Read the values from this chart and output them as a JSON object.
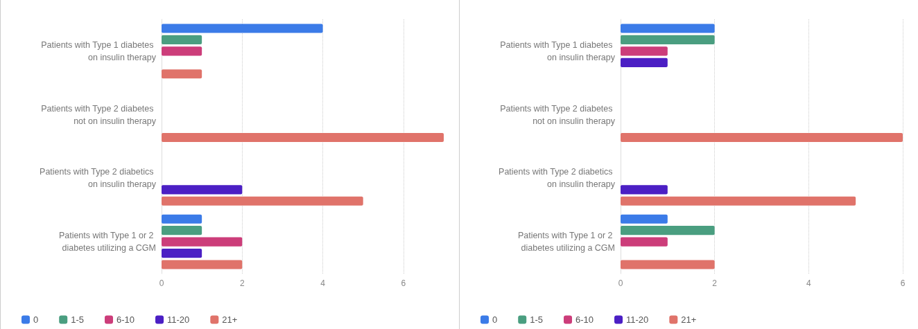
{
  "chart_data": [
    {
      "type": "bar",
      "orientation": "horizontal",
      "categories": [
        "Patients with Type 1 diabetes on insulin therapy",
        "Patients with Type 2 diabetes not on insulin therapy",
        "Patients with Type 2 diabetics on insulin therapy",
        "Patients with Type 1 or 2 diabetes utilizing a CGM"
      ],
      "series": [
        {
          "name": "0",
          "color": "#3b7be8",
          "values": [
            4,
            0,
            0,
            1
          ]
        },
        {
          "name": "1-5",
          "color": "#4a9e80",
          "values": [
            1,
            0,
            0,
            1
          ]
        },
        {
          "name": "6-10",
          "color": "#cc3d7a",
          "values": [
            1,
            0,
            0,
            2
          ]
        },
        {
          "name": "11-20",
          "color": "#4b1fc4",
          "values": [
            0,
            0,
            2,
            1
          ]
        },
        {
          "name": "21+",
          "color": "#e0736a",
          "values": [
            1,
            7,
            5,
            2
          ]
        }
      ],
      "xlim": [
        0,
        7
      ],
      "xticks": [
        0,
        2,
        4,
        6
      ],
      "grid": "x",
      "legend": "bottom left"
    },
    {
      "type": "bar",
      "orientation": "horizontal",
      "categories": [
        "Patients with Type 1 diabetes on insulin therapy",
        "Patients with Type 2 diabetes not on insulin therapy",
        "Patients with Type 2 diabetics on insulin therapy",
        "Patients with Type 1 or 2 diabetes utilizing a CGM"
      ],
      "series": [
        {
          "name": "0",
          "color": "#3b7be8",
          "values": [
            2,
            0,
            0,
            1
          ]
        },
        {
          "name": "1-5",
          "color": "#4a9e80",
          "values": [
            2,
            0,
            0,
            2
          ]
        },
        {
          "name": "6-10",
          "color": "#cc3d7a",
          "values": [
            1,
            0,
            0,
            1
          ]
        },
        {
          "name": "11-20",
          "color": "#4b1fc4",
          "values": [
            1,
            0,
            1,
            0
          ]
        },
        {
          "name": "21+",
          "color": "#e0736a",
          "values": [
            0,
            6,
            5,
            2
          ]
        }
      ],
      "xlim": [
        0,
        6
      ],
      "xticks": [
        0,
        2,
        4,
        6
      ],
      "grid": "x",
      "legend": "bottom left"
    }
  ]
}
